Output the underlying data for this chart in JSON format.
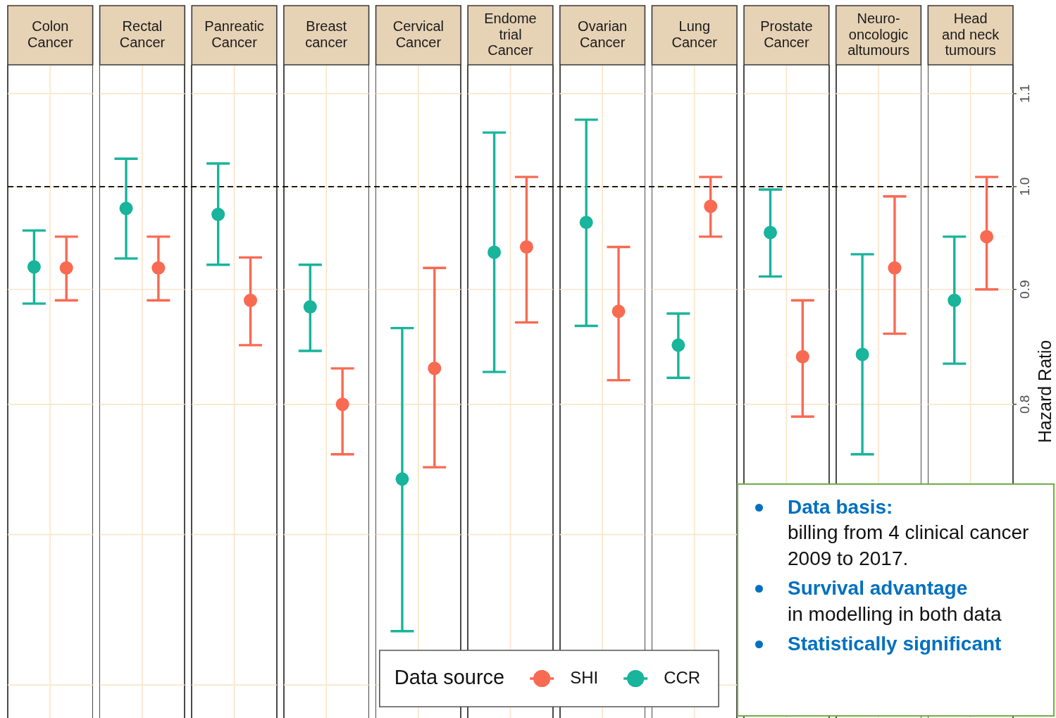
{
  "chart_data": [
    {
      "type": "scatter",
      "categories": [
        "Colon\nCancer",
        "Rectal\nCancer",
        "Panreatic\nCancer",
        "Breast\ncancer",
        "Cervical\nCancer",
        "Endome\ntrial\nCancer",
        "Ovarian\nCancer",
        "Lung\nCancer",
        "Prostate\nCancer",
        "Neuro-\noncologic\naltumours",
        "Head\nand neck\ntumours"
      ],
      "ylabel": "Hazard Ratio",
      "legend_title": "Data source",
      "legend": "bottom",
      "log": true,
      "grid": true,
      "marker": "circle",
      "ylim": [
        0.582,
        1.133
      ],
      "yticks": [
        {
          "value": 0.6,
          "label": null
        },
        {
          "value": 0.7,
          "label": null
        },
        0.8,
        0.9,
        {
          "value": 1,
          "label": "1.0"
        },
        1.1
      ],
      "ref_lines": [
        {
          "axis": "y",
          "value": 1,
          "color": "#000000",
          "line_style": "dashed"
        }
      ],
      "series": [
        {
          "name": "SHI",
          "color": "#f96a52",
          "values": [
            0.92,
            0.92,
            0.89,
            0.8,
            0.83,
            0.94,
            0.88,
            0.98,
            0.84,
            0.92,
            0.95
          ],
          "errors": [
            [
              0.89,
              0.95
            ],
            [
              0.89,
              0.95
            ],
            [
              0.85,
              0.93
            ],
            [
              0.76,
              0.83
            ],
            [
              0.75,
              0.92
            ],
            [
              0.87,
              1.01
            ],
            [
              0.82,
              0.94
            ],
            [
              0.95,
              1.01
            ],
            [
              0.79,
              0.89
            ],
            [
              0.86,
              0.99
            ],
            [
              0.9,
              1.01
            ]
          ]
        },
        {
          "name": "CCR",
          "color": "#18b49b",
          "values": [
            0.921,
            0.978,
            0.972,
            0.884,
            0.741,
            0.935,
            0.964,
            0.85,
            0.954,
            0.842,
            0.89
          ],
          "errors": [
            [
              0.887,
              0.956
            ],
            [
              0.929,
              1.029
            ],
            [
              0.923,
              1.024
            ],
            [
              0.845,
              0.923
            ],
            [
              0.634,
              0.865
            ],
            [
              0.827,
              1.057
            ],
            [
              0.867,
              1.071
            ],
            [
              0.822,
              0.878
            ],
            [
              0.912,
              0.997
            ],
            [
              0.76,
              0.933
            ],
            [
              0.834,
              0.95
            ]
          ]
        }
      ]
    },
    {
      "type": "other",
      "annotations": [
        "Data basis:",
        "billing from 4 clinical cancer 2009 to 2017.",
        "Survival advantage",
        "in modelling in both data",
        "Statistically significant"
      ]
    }
  ]
}
